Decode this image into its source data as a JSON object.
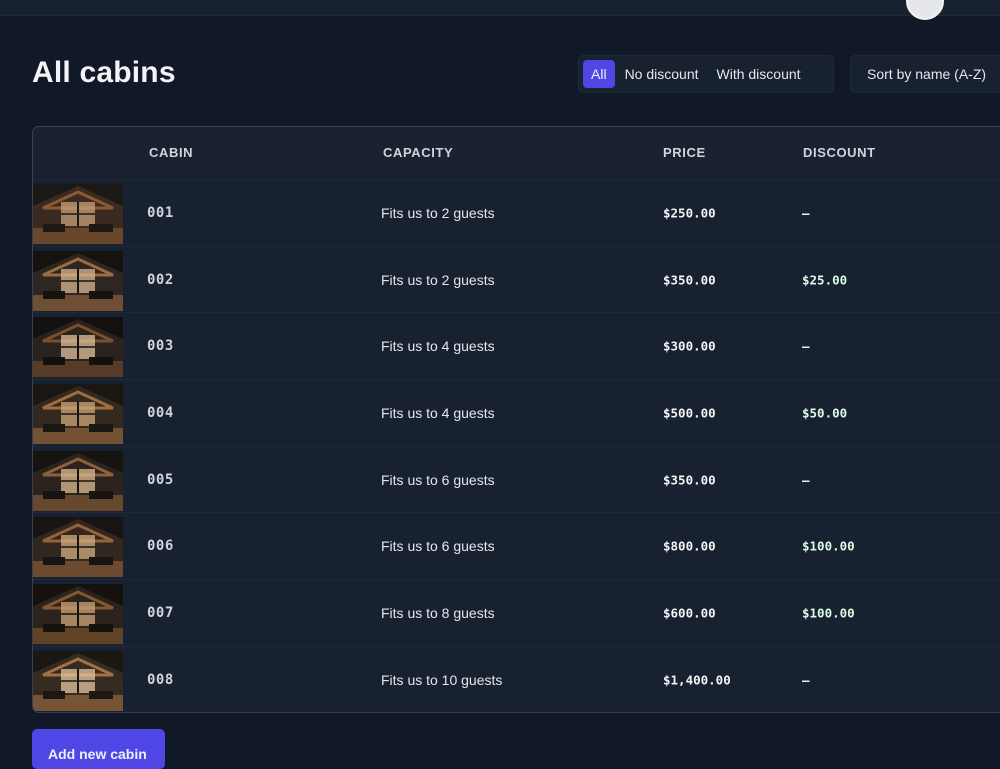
{
  "header": {
    "avatar_icon": "user-avatar"
  },
  "page": {
    "title": "All cabins"
  },
  "filter": {
    "options": [
      {
        "label": "All",
        "active": true
      },
      {
        "label": "No discount",
        "active": false
      },
      {
        "label": "With discount",
        "active": false
      }
    ]
  },
  "sort": {
    "value": "Sort by name (A-Z)"
  },
  "table": {
    "headers": {
      "image": "",
      "cabin": "Cabin",
      "capacity": "Capacity",
      "price": "Price",
      "discount": "Discount"
    },
    "rows": [
      {
        "name": "001",
        "capacity": "Fits us to 2 guests",
        "price": "$250.00",
        "discount": "—"
      },
      {
        "name": "002",
        "capacity": "Fits us to 2 guests",
        "price": "$350.00",
        "discount": "$25.00"
      },
      {
        "name": "003",
        "capacity": "Fits us to 4 guests",
        "price": "$300.00",
        "discount": "—"
      },
      {
        "name": "004",
        "capacity": "Fits us to 4 guests",
        "price": "$500.00",
        "discount": "$50.00"
      },
      {
        "name": "005",
        "capacity": "Fits us to 6 guests",
        "price": "$350.00",
        "discount": "—"
      },
      {
        "name": "006",
        "capacity": "Fits us to 6 guests",
        "price": "$800.00",
        "discount": "$100.00"
      },
      {
        "name": "007",
        "capacity": "Fits us to 8 guests",
        "price": "$600.00",
        "discount": "$100.00"
      },
      {
        "name": "008",
        "capacity": "Fits us to 10 guests",
        "price": "$1,400.00",
        "discount": "—"
      }
    ]
  },
  "actions": {
    "add_label": "Add new cabin"
  },
  "colors": {
    "background": "#111827",
    "surface": "#18212f",
    "accent": "#4f46e5",
    "discount": "#dcfce7"
  }
}
